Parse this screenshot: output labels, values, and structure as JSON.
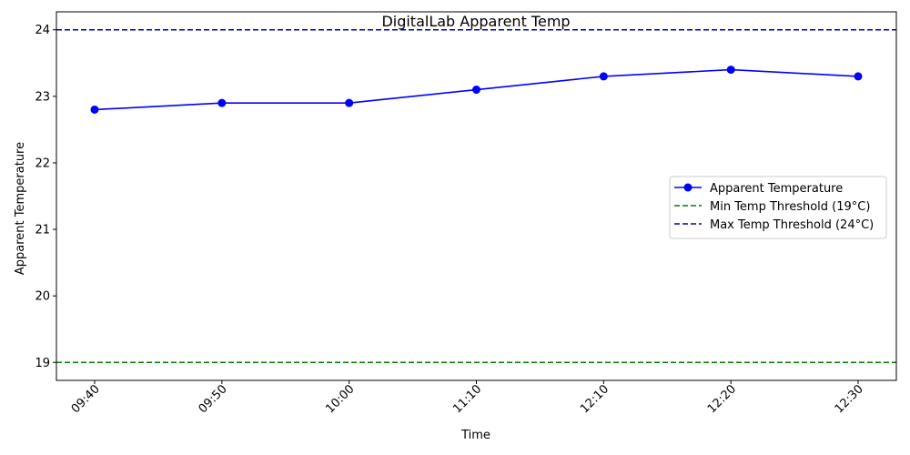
{
  "chart_data": {
    "type": "line",
    "title": "DigitalLab Apparent Temp",
    "xlabel": "Time",
    "ylabel": "Apparent Temperature",
    "categories": [
      "09:40",
      "09:50",
      "10:00",
      "11:10",
      "12:10",
      "12:20",
      "12:30"
    ],
    "series": [
      {
        "name": "Apparent Temperature",
        "values": [
          22.8,
          22.9,
          22.9,
          23.1,
          23.3,
          23.4,
          23.3
        ],
        "color": "#0000ff",
        "marker": "circle"
      }
    ],
    "thresholds": [
      {
        "name": "Min Temp Threshold (19°C)",
        "value": 19,
        "color": "#008000",
        "style": "dashed"
      },
      {
        "name": "Max Temp Threshold (24°C)",
        "value": 24,
        "color": "#0000cc",
        "style": "dashed"
      }
    ],
    "ylim": [
      18.73,
      24.27
    ],
    "yticks": [
      19,
      20,
      21,
      22,
      23,
      24
    ],
    "grid": false,
    "legend_position": "center-right"
  }
}
